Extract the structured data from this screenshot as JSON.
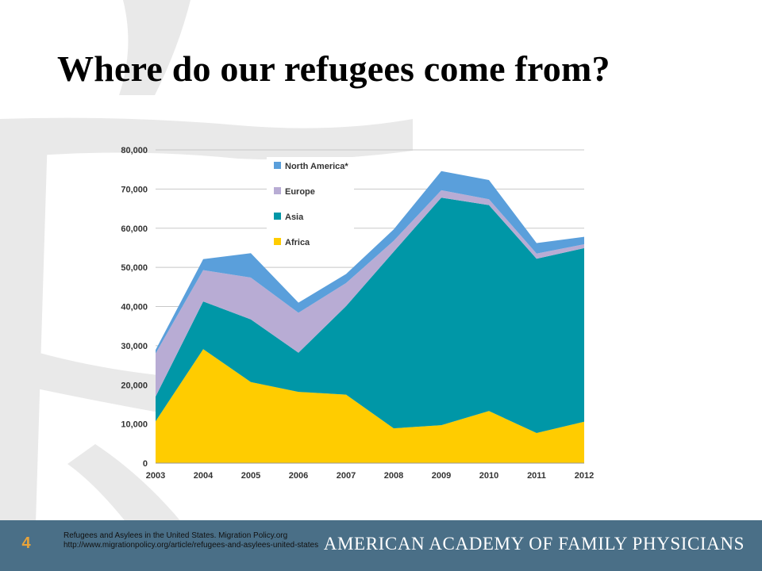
{
  "slide": {
    "title": "Where do our refugees come from?",
    "number": "4"
  },
  "footer": {
    "citation_line1": "Refugees and Asylees in the United States. Migration Policy.org",
    "citation_line2": "http://www.migrationpolicy.org/article/refugees-and-asylees-united-states",
    "organization": "AMERICAN ACADEMY OF FAMILY PHYSICIANS"
  },
  "colors": {
    "footer_bg": "#4a6f87",
    "accent_number": "#e8a33a",
    "africa": "#ffcc00",
    "asia": "#0097a7",
    "europe": "#b8acd4",
    "north_america": "#5a9fdb"
  },
  "chart_data": {
    "type": "area",
    "stacked": true,
    "x": [
      "2003",
      "2004",
      "2005",
      "2006",
      "2007",
      "2008",
      "2009",
      "2010",
      "2011",
      "2012"
    ],
    "ylim": [
      0,
      80000
    ],
    "yticks": [
      "0",
      "10,000",
      "20,000",
      "30,000",
      "40,000",
      "50,000",
      "60,000",
      "70,000",
      "80,000"
    ],
    "grid": true,
    "legend_position": "top-center",
    "series": [
      {
        "name": "Africa",
        "color": "#ffcc00",
        "values": [
          10700,
          29100,
          20700,
          18200,
          17500,
          8900,
          9700,
          13300,
          7700,
          10600
        ]
      },
      {
        "name": "Asia",
        "color": "#0097a7",
        "values": [
          6300,
          12200,
          16000,
          10000,
          22600,
          45100,
          58100,
          52600,
          44500,
          44300
        ]
      },
      {
        "name": "Europe",
        "color": "#b8acd4",
        "values": [
          11000,
          8000,
          10700,
          10200,
          5900,
          2800,
          1900,
          1500,
          1300,
          1000
        ]
      },
      {
        "name": "North America*",
        "color": "#5a9fdb",
        "values": [
          900,
          2800,
          6200,
          2600,
          2300,
          2900,
          4900,
          4900,
          2700,
          1900
        ]
      }
    ]
  }
}
